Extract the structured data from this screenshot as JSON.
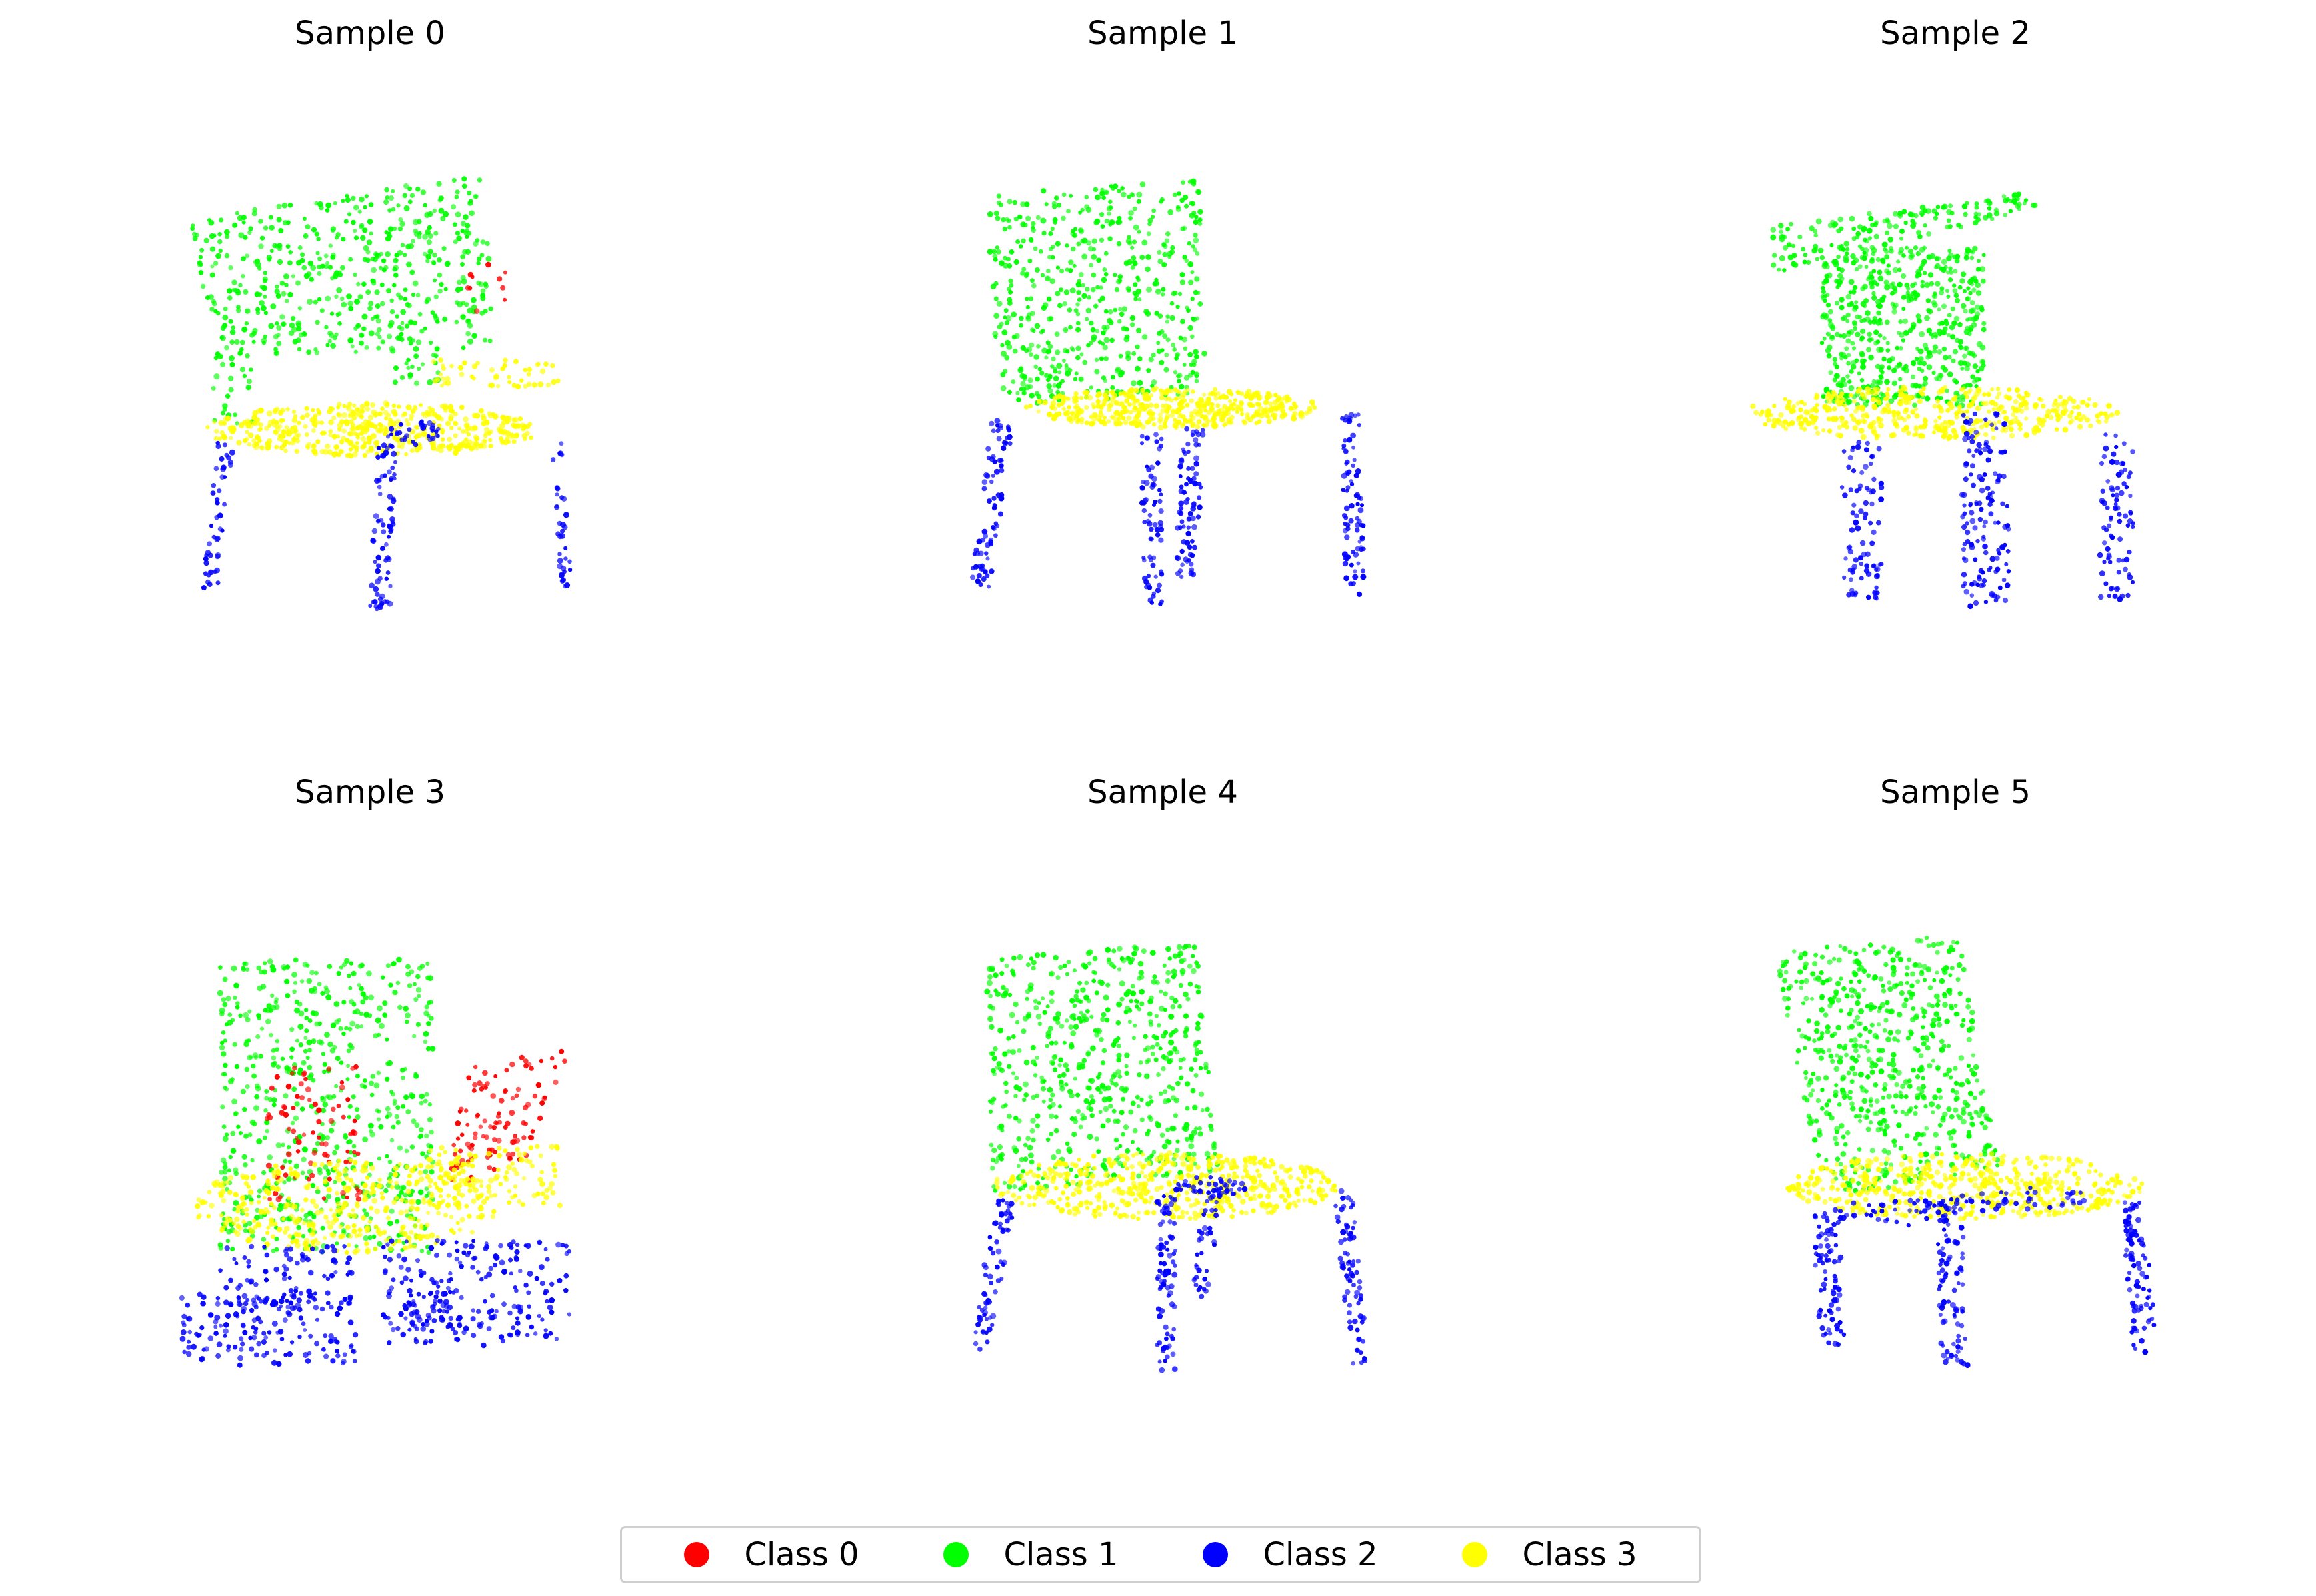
{
  "colors": {
    "Class 0": "#ff0000",
    "Class 1": "#00ff00",
    "Class 2": "#0000ff",
    "Class 3": "#ffff00"
  },
  "legend": [
    {
      "label": "Class 0",
      "color": "#ff0000"
    },
    {
      "label": "Class 1",
      "color": "#00ff00"
    },
    {
      "label": "Class 2",
      "color": "#0000ff"
    },
    {
      "label": "Class 3",
      "color": "#ffff00"
    }
  ],
  "chart_data": [
    {
      "type": "scatter",
      "title": "Sample 0",
      "axes": "off",
      "series": [
        {
          "name": "Class 0"
        },
        {
          "name": "Class 1"
        },
        {
          "name": "Class 2"
        },
        {
          "name": "Class 3"
        }
      ]
    },
    {
      "type": "scatter",
      "title": "Sample 1",
      "axes": "off",
      "series": [
        {
          "name": "Class 1"
        },
        {
          "name": "Class 2"
        },
        {
          "name": "Class 3"
        }
      ]
    },
    {
      "type": "scatter",
      "title": "Sample 2",
      "axes": "off",
      "series": [
        {
          "name": "Class 1"
        },
        {
          "name": "Class 2"
        },
        {
          "name": "Class 3"
        }
      ]
    },
    {
      "type": "scatter",
      "title": "Sample 3",
      "axes": "off",
      "series": [
        {
          "name": "Class 0"
        },
        {
          "name": "Class 1"
        },
        {
          "name": "Class 2"
        },
        {
          "name": "Class 3"
        }
      ]
    },
    {
      "type": "scatter",
      "title": "Sample 4",
      "axes": "off",
      "series": [
        {
          "name": "Class 1"
        },
        {
          "name": "Class 2"
        },
        {
          "name": "Class 3"
        }
      ]
    },
    {
      "type": "scatter",
      "title": "Sample 5",
      "axes": "off",
      "series": [
        {
          "name": "Class 1"
        },
        {
          "name": "Class 2"
        },
        {
          "name": "Class 3"
        }
      ]
    }
  ]
}
